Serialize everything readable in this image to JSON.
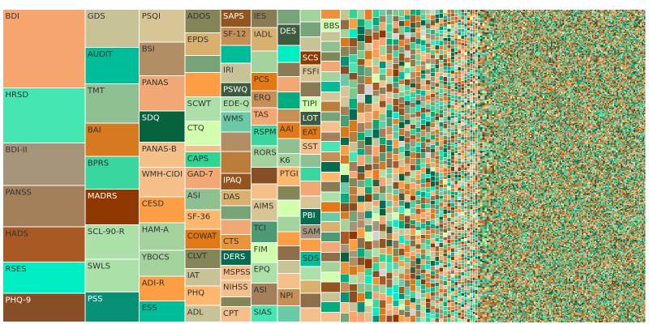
{
  "chart_data": {
    "type": "treemap",
    "title": "",
    "palette": [
      "#f7a46f",
      "#45e6b1",
      "#a69478",
      "#a3805a",
      "#a95a24",
      "#00eec3",
      "#884e26",
      "#c8c396",
      "#00bd99",
      "#8fc092",
      "#d57a1e",
      "#3ad6a0",
      "#8e3700",
      "#abe1a8",
      "#069076",
      "#d7c596",
      "#b18e64",
      "#f2a874",
      "#07623d",
      "#f5bf8a",
      "#a3d29d",
      "#fd9e44",
      "#77a379",
      "#e37814",
      "#848559",
      "#d8b16f",
      "#2ed491",
      "#d1ffae",
      "#d2d2d3",
      "#00ac7e",
      "#e9943c",
      "#7cc98e",
      "#ffb76e",
      "#3c5b3f",
      "#6ac9a6",
      "#935520",
      "#55cda4",
      "#bb7d39",
      "#f47722",
      "#066b50",
      "#8a7b55",
      "#4c9b75",
      "#c78e55",
      "#08a873",
      "#8e6e49"
    ],
    "columns": [
      {
        "share": 11.73,
        "tiles": [
          {
            "label": "BDI",
            "value": 24.7,
            "color": "#f7a46f"
          },
          {
            "label": "HRSD",
            "value": 17.3,
            "color": "#45e6b1"
          },
          {
            "label": "BDI-II",
            "value": 13.3,
            "color": "#a69478"
          },
          {
            "label": "PANSS",
            "value": 13.0,
            "color": "#a3805a"
          },
          {
            "label": "HADS",
            "value": 11.1,
            "color": "#a95a24"
          },
          {
            "label": "RSES",
            "value": 9.8,
            "color": "#00eec3"
          },
          {
            "label": "PHQ-9",
            "value": 9.0,
            "color": "#884e26"
          }
        ]
      },
      {
        "share": 7.73,
        "tiles": [
          {
            "label": "GDS",
            "value": 12.0,
            "color": "#c8c396"
          },
          {
            "label": "AUDIT",
            "value": 11.5,
            "color": "#00bd99"
          },
          {
            "label": "TMT",
            "value": 12.3,
            "color": "#8fc092"
          },
          {
            "label": "BAI",
            "value": 10.5,
            "color": "#d57a1e"
          },
          {
            "label": "BPRS",
            "value": 10.3,
            "color": "#3ad6a0"
          },
          {
            "label": "MADRS",
            "value": 11.3,
            "color": "#8e3700"
          },
          {
            "label": "SCL-90-R",
            "value": 10.8,
            "color": "#abe1a8"
          },
          {
            "label": "SWLS",
            "value": 10.3,
            "color": "#abe1a8"
          },
          {
            "label": "PSS",
            "value": 9.5,
            "color": "#069076"
          }
        ]
      },
      {
        "share": 6.48,
        "tiles": [
          {
            "label": "PSQI",
            "value": 10.5,
            "color": "#d7c596"
          },
          {
            "label": "BSI",
            "value": 10.7,
            "color": "#b18e64"
          },
          {
            "label": "PANAS",
            "value": 11.3,
            "color": "#f2a874"
          },
          {
            "label": "SDQ",
            "value": 10.0,
            "color": "#07623d"
          },
          {
            "label": "PANAS-B",
            "value": 8.0,
            "color": "#f5bf8a"
          },
          {
            "label": "WMH-CIDI",
            "value": 9.5,
            "color": "#f5bf8a"
          },
          {
            "label": "CESD",
            "value": 8.3,
            "color": "#fd9e44"
          },
          {
            "label": "HAM-A",
            "value": 8.8,
            "color": "#a3d29d"
          },
          {
            "label": "YBOCS",
            "value": 8.3,
            "color": "#a3d29d"
          },
          {
            "label": "ADI-R",
            "value": 7.8,
            "color": "#fd9e44"
          },
          {
            "label": "ESS",
            "value": 6.8,
            "color": "#00bd99"
          }
        ]
      },
      {
        "share": 5.12,
        "tiles": [
          {
            "label": "ADOS",
            "value": 7.5,
            "color": "#848559"
          },
          {
            "label": "EPDS",
            "value": 7.3,
            "color": "#d8b16f"
          },
          {
            "label": "",
            "value": 5.5,
            "color": "#77a379"
          },
          {
            "label": "",
            "value": 7.8,
            "color": "#fd9e44"
          },
          {
            "label": "SCWT",
            "value": 7.8,
            "color": "#abe1a8"
          },
          {
            "label": "CTQ",
            "value": 7.8,
            "color": "#d1ffae"
          },
          {
            "label": "",
            "value": 2.0,
            "color": "#f5bf8a"
          },
          {
            "label": "CAPS",
            "value": 5.0,
            "color": "#2ed491"
          },
          {
            "label": "GAD-7",
            "value": 6.8,
            "color": "#f2a874"
          },
          {
            "label": "ASI",
            "value": 6.8,
            "color": "#8fc092"
          },
          {
            "label": "SF-36",
            "value": 6.3,
            "color": "#ffb76e"
          },
          {
            "label": "COWAT",
            "value": 6.3,
            "color": "#e37814"
          },
          {
            "label": "CLVT",
            "value": 6.3,
            "color": "#848559"
          },
          {
            "label": "IAT",
            "value": 5.5,
            "color": "#c8c396"
          },
          {
            "label": "PHQ",
            "value": 6.3,
            "color": "#ffb76e"
          },
          {
            "label": "ADL",
            "value": 5.3,
            "color": "#c8c396"
          }
        ]
      },
      {
        "share": 4.35,
        "tiles": [
          {
            "label": "SAPS",
            "value": 6.3,
            "color": "#935520"
          },
          {
            "label": "SF-12",
            "value": 6.5,
            "color": "#c78e55"
          },
          {
            "label": "",
            "value": 6.3,
            "color": "#00bd99"
          },
          {
            "label": "IRI",
            "value": 7.0,
            "color": "#c8c396"
          },
          {
            "label": "PSWQ",
            "value": 5.0,
            "color": "#3c5b3f"
          },
          {
            "label": "EDE-Q",
            "value": 5.3,
            "color": "#abe1a8"
          },
          {
            "label": "WMS",
            "value": 7.3,
            "color": "#6ac9a6"
          },
          {
            "label": "",
            "value": 6.8,
            "color": "#b18e64"
          },
          {
            "label": "",
            "value": 7.8,
            "color": "#bb7d39"
          },
          {
            "label": "IPAQ",
            "value": 6.0,
            "color": "#935520"
          },
          {
            "label": "DAS",
            "value": 5.5,
            "color": "#d8b16f"
          },
          {
            "label": "",
            "value": 5.0,
            "color": "#77a379"
          },
          {
            "label": "",
            "value": 5.3,
            "color": "#f2a874"
          },
          {
            "label": "CTS",
            "value": 5.5,
            "color": "#e9943c"
          },
          {
            "label": "DERS",
            "value": 5.5,
            "color": "#066b50"
          },
          {
            "label": "MSPSS",
            "value": 5.3,
            "color": "#f5bf8a"
          },
          {
            "label": "NIHSS",
            "value": 5.8,
            "color": "#f5bf8a"
          },
          {
            "label": "",
            "value": 3.5,
            "color": "#848559"
          },
          {
            "label": "CPT",
            "value": 5.5,
            "color": "#f5bf8a"
          }
        ]
      },
      {
        "share": 3.73,
        "tiles": [
          {
            "label": "IES",
            "value": 5.3,
            "color": "#8a7b55"
          },
          {
            "label": "IADL",
            "value": 6.8,
            "color": "#d8b16f"
          },
          {
            "label": "",
            "value": 6.3,
            "color": "#a3d29d"
          },
          {
            "label": "PCS",
            "value": 5.3,
            "color": "#e37814"
          },
          {
            "label": "ERQ",
            "value": 5.0,
            "color": "#c78e55"
          },
          {
            "label": "TAS",
            "value": 5.0,
            "color": "#f2a874"
          },
          {
            "label": "RSPM",
            "value": 6.0,
            "color": "#3ad6a0"
          },
          {
            "label": "RORS",
            "value": 6.3,
            "color": "#a3d29d"
          },
          {
            "label": "",
            "value": 4.8,
            "color": "#884e26"
          },
          {
            "label": "",
            "value": 4.5,
            "color": "#f5bf8a"
          },
          {
            "label": "AIMS",
            "value": 6.3,
            "color": "#d7c596"
          },
          {
            "label": "TCI",
            "value": 6.3,
            "color": "#4c9b75"
          },
          {
            "label": "FIM",
            "value": 5.8,
            "color": "#d1ffae"
          },
          {
            "label": "EPQ",
            "value": 6.0,
            "color": "#abe1a8"
          },
          {
            "label": "ASI",
            "value": 6.5,
            "color": "#a3805a"
          },
          {
            "label": "SIAS",
            "value": 4.8,
            "color": "#45e6b1"
          }
        ]
      },
      {
        "share": 3.23,
        "tiles": [
          {
            "label": "",
            "value": 4.0,
            "color": "#77a379"
          },
          {
            "label": "DES",
            "value": 5.5,
            "color": "#3c5b3f"
          },
          {
            "label": "",
            "value": 4.5,
            "color": "#00eec3"
          },
          {
            "label": "",
            "value": 3.8,
            "color": "#8a7b55"
          },
          {
            "label": "",
            "value": 4.0,
            "color": "#f2a874"
          },
          {
            "label": "",
            "value": 4.5,
            "color": "#00ac7e"
          },
          {
            "label": "",
            "value": 3.5,
            "color": "#c78e55"
          },
          {
            "label": "AAI",
            "value": 4.3,
            "color": "#e37814"
          },
          {
            "label": "",
            "value": 4.0,
            "color": "#8fc092"
          },
          {
            "label": "K6",
            "value": 3.5,
            "color": "#a3d29d"
          },
          {
            "label": "PTGI",
            "value": 5.0,
            "color": "#ffb76e"
          },
          {
            "label": "",
            "value": 3.8,
            "color": "#848559"
          },
          {
            "label": "",
            "value": 4.3,
            "color": "#d1ffae"
          },
          {
            "label": "",
            "value": 4.0,
            "color": "#a3d29d"
          },
          {
            "label": "",
            "value": 3.8,
            "color": "#fd9e44"
          },
          {
            "label": "",
            "value": 3.8,
            "color": "#8e6e49"
          },
          {
            "label": "",
            "value": 3.5,
            "color": "#c8c396"
          },
          {
            "label": "",
            "value": 4.0,
            "color": "#f5bf8a"
          },
          {
            "label": "NPI",
            "value": 4.5,
            "color": "#c78e55"
          },
          {
            "label": "",
            "value": 4.3,
            "color": "#6ac9a6"
          }
        ]
      },
      {
        "share": 3.0,
        "tiles": [
          {
            "label": "",
            "value": 3.0,
            "color": "#a3d29d"
          },
          {
            "label": "",
            "value": 3.5,
            "color": "#77a379"
          },
          {
            "label": "",
            "value": 3.3,
            "color": "#c8c396"
          },
          {
            "label": "SCS",
            "value": 3.3,
            "color": "#8e3700"
          },
          {
            "label": "FSFI",
            "value": 4.0,
            "color": "#d7c596"
          },
          {
            "label": "",
            "value": 3.5,
            "color": "#8a7b55"
          },
          {
            "label": "TIPI",
            "value": 3.5,
            "color": "#d1ffae"
          },
          {
            "label": "LOT",
            "value": 3.3,
            "color": "#3c5b3f"
          },
          {
            "label": "EAT",
            "value": 3.3,
            "color": "#e37814"
          },
          {
            "label": "SST",
            "value": 3.5,
            "color": "#f5bf8a"
          },
          {
            "label": "",
            "value": 3.0,
            "color": "#8fc092"
          },
          {
            "label": "",
            "value": 3.3,
            "color": "#3ad6a0"
          },
          {
            "label": "",
            "value": 3.5,
            "color": "#f2a874"
          },
          {
            "label": "",
            "value": 3.0,
            "color": "#d7c596"
          },
          {
            "label": "PBI",
            "value": 3.8,
            "color": "#066b50"
          },
          {
            "label": "SAM",
            "value": 3.3,
            "color": "#a69478"
          },
          {
            "label": "",
            "value": 3.0,
            "color": "#fd9e44"
          },
          {
            "label": "SDS",
            "value": 3.5,
            "color": "#00bd99"
          },
          {
            "label": "",
            "value": 3.3,
            "color": "#abe1a8"
          },
          {
            "label": "",
            "value": 3.0,
            "color": "#d8b16f"
          },
          {
            "label": "",
            "value": 3.5,
            "color": "#8e6e49"
          },
          {
            "label": "",
            "value": 3.3,
            "color": "#f5bf8a"
          }
        ]
      },
      {
        "share": 2.75,
        "tiles": [
          {
            "label": "",
            "value": 3.0,
            "color": "#e9943c"
          },
          {
            "label": "BBS",
            "value": 4.0,
            "color": "#d1ffae"
          },
          {
            "label": "",
            "value": 3.0,
            "color": "#c8c396"
          },
          {
            "label": "",
            "value": 3.3,
            "color": "#8fc092"
          },
          {
            "label": "",
            "value": 3.0,
            "color": "#848559"
          },
          {
            "label": "",
            "value": 3.3,
            "color": "#f2a874"
          },
          {
            "label": "",
            "value": 3.0,
            "color": "#a3d29d"
          },
          {
            "label": "",
            "value": 3.3,
            "color": "#00bd99"
          },
          {
            "label": "",
            "value": 3.0,
            "color": "#d7c596"
          },
          {
            "label": "",
            "value": 3.3,
            "color": "#bb7d39"
          },
          {
            "label": "",
            "value": 3.0,
            "color": "#77a379"
          },
          {
            "label": "",
            "value": 3.3,
            "color": "#f5bf8a"
          },
          {
            "label": "",
            "value": 3.0,
            "color": "#a3805a"
          },
          {
            "label": "",
            "value": 3.3,
            "color": "#45e6b1"
          },
          {
            "label": "",
            "value": 3.0,
            "color": "#c78e55"
          },
          {
            "label": "",
            "value": 3.3,
            "color": "#066b50"
          },
          {
            "label": "",
            "value": 3.0,
            "color": "#ffb76e"
          },
          {
            "label": "",
            "value": 3.3,
            "color": "#8a7b55"
          },
          {
            "label": "",
            "value": 3.0,
            "color": "#abe1a8"
          },
          {
            "label": "",
            "value": 3.3,
            "color": "#e37814"
          },
          {
            "label": "",
            "value": 3.0,
            "color": "#6ac9a6"
          },
          {
            "label": "",
            "value": 3.3,
            "color": "#d8b16f"
          },
          {
            "label": "",
            "value": 3.0,
            "color": "#4c9b75"
          },
          {
            "label": "",
            "value": 3.3,
            "color": "#f2a874"
          },
          {
            "label": "",
            "value": 3.0,
            "color": "#8e6e49"
          },
          {
            "label": "",
            "value": 3.3,
            "color": "#a3d29d"
          },
          {
            "label": "",
            "value": 3.0,
            "color": "#d1ffae"
          },
          {
            "label": "",
            "value": 3.3,
            "color": "#935520"
          },
          {
            "label": "",
            "value": 3.0,
            "color": "#c8c396"
          },
          {
            "label": "",
            "value": 3.3,
            "color": "#00ac7e"
          },
          {
            "label": "",
            "value": 3.0,
            "color": "#f5bf8a"
          }
        ]
      }
    ]
  }
}
